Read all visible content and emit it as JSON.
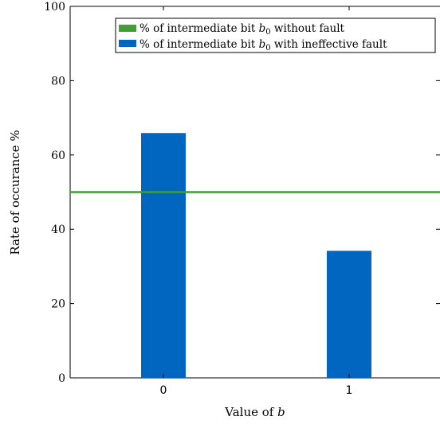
{
  "chart_data": {
    "type": "bar",
    "categories": [
      "0",
      "1"
    ],
    "xlabel_prefix": "Value of ",
    "xlabel_var": "b",
    "ylabel": "Rate of occurance %",
    "ylim": [
      0,
      100
    ],
    "yticks": [
      0,
      20,
      40,
      60,
      80,
      100
    ],
    "grid": false,
    "legend_position": "top-right",
    "series": [
      {
        "kind": "bar",
        "label_prefix": "% of intermediate bit ",
        "label_var": "b",
        "label_sub": "0",
        "label_suffix": " with ineffective fault",
        "color": "#0066bf",
        "values": [
          65.9,
          34.2
        ]
      },
      {
        "kind": "line",
        "label_prefix": "% of intermediate bit ",
        "label_var": "b",
        "label_sub": "0",
        "label_suffix": " without fault",
        "color": "#3f9f33",
        "values": [
          50,
          50
        ]
      }
    ]
  }
}
